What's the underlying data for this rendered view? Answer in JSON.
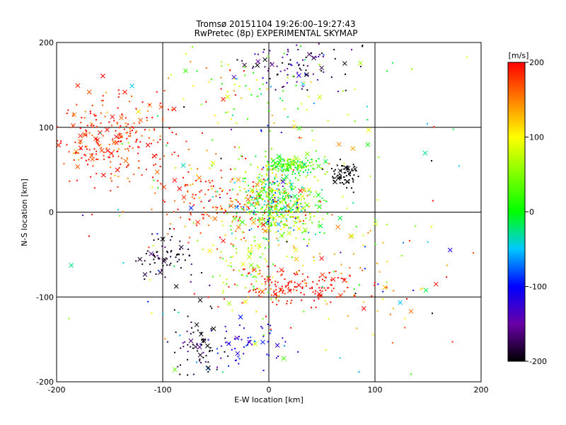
{
  "chart_data": {
    "type": "scatter",
    "title_lines": [
      "Tromsø 20151104 19:26:00–19:27:43",
      "RwPretec (8p) EXPERIMENTAL SKYMAP"
    ],
    "xlabel": "E-W location [km]",
    "ylabel": "N-S location [km]",
    "xlim": [
      -200,
      200
    ],
    "ylim": [
      -200,
      200
    ],
    "xticks": [
      -200,
      -100,
      0,
      100,
      200
    ],
    "yticks": [
      -200,
      -100,
      0,
      100,
      200
    ],
    "xtick_labels": [
      "-200",
      "-100",
      "0",
      "100",
      "200"
    ],
    "ytick_labels": [
      "-200",
      "-100",
      "0",
      "100",
      "200"
    ],
    "grid": true,
    "markers": [
      "dot",
      "x"
    ],
    "colorbar": {
      "label": "[m/s]",
      "range": [
        -200,
        200
      ],
      "ticks": [
        -200,
        -100,
        0,
        100,
        200
      ],
      "tick_labels": [
        "-200",
        "-100",
        "0",
        "100",
        "200"
      ],
      "colors": [
        "#000000",
        "#6a00a8",
        "#0000ff",
        "#00c8ff",
        "#00ff00",
        "#ffff00",
        "#ff0000"
      ]
    },
    "clusters": [
      {
        "x": 8,
        "y": 10,
        "sx": 20,
        "sy": 22,
        "n": 520,
        "v_mean": 40,
        "v_spread": 110
      },
      {
        "x": 22,
        "y": 55,
        "sx": 14,
        "sy": 6,
        "n": 140,
        "v_mean": 30,
        "v_spread": 60
      },
      {
        "x": 26,
        "y": -88,
        "sx": 34,
        "sy": 10,
        "n": 150,
        "v_mean": 195,
        "v_spread": 15
      },
      {
        "x": -150,
        "y": 85,
        "sx": 32,
        "sy": 28,
        "n": 280,
        "v_mean": 185,
        "v_spread": 45
      },
      {
        "x": -55,
        "y": 15,
        "sx": 30,
        "sy": 25,
        "n": 160,
        "v_mean": 175,
        "v_spread": 60
      },
      {
        "x": 72,
        "y": 45,
        "sx": 6,
        "sy": 8,
        "n": 70,
        "v_mean": -200,
        "v_spread": 5
      },
      {
        "x": -100,
        "y": -55,
        "sx": 14,
        "sy": 14,
        "n": 70,
        "v_mean": -190,
        "v_spread": 25
      },
      {
        "x": 25,
        "y": 175,
        "sx": 25,
        "sy": 16,
        "n": 100,
        "v_mean": -170,
        "v_spread": 60
      },
      {
        "x": -20,
        "y": -155,
        "sx": 18,
        "sy": 14,
        "n": 60,
        "v_mean": -110,
        "v_spread": 40
      },
      {
        "x": -65,
        "y": -160,
        "sx": 14,
        "sy": 25,
        "n": 70,
        "v_mean": -190,
        "v_spread": 30
      },
      {
        "x": -20,
        "y": -60,
        "sx": 18,
        "sy": 22,
        "n": 70,
        "v_mean": 60,
        "v_spread": 60
      },
      {
        "x": 60,
        "y": -70,
        "sx": 50,
        "sy": 40,
        "n": 90,
        "v_mean": 150,
        "v_spread": 80
      },
      {
        "x": -20,
        "y": 140,
        "sx": 45,
        "sy": 30,
        "n": 90,
        "v_mean": 60,
        "v_spread": 110
      },
      {
        "x": 0,
        "y": 0,
        "sx": 110,
        "sy": 110,
        "n": 170,
        "v_mean": 0,
        "v_spread": 200
      }
    ]
  }
}
